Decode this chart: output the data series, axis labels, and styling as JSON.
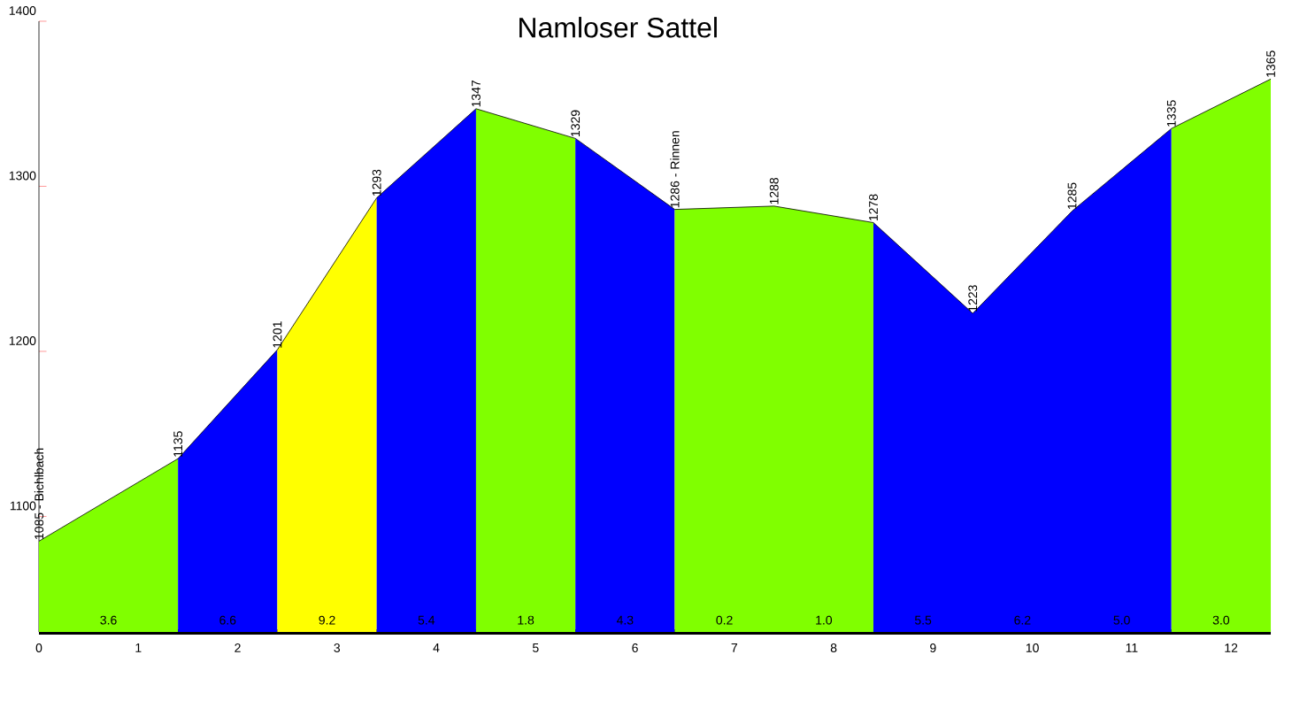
{
  "chart_data": {
    "type": "area",
    "title": "Namloser Sattel",
    "series": [
      {
        "type": "line",
        "color": "#000000",
        "x": [
          0,
          1.4,
          2.4,
          3.4,
          4.4,
          5.4,
          6.4,
          7.4,
          8.4,
          9.4,
          10.4,
          11.4,
          12.4
        ],
        "values": [
          1085,
          1135,
          1201,
          1293,
          1347,
          1329,
          1286,
          1288,
          1278,
          1223,
          1285,
          1335,
          1365
        ],
        "value_labels": [
          "1085 - Bichlbach",
          "1135",
          "1201",
          "1293",
          "1347",
          "1329",
          "1286 - Rinnen",
          "1288",
          "1278",
          "1223",
          "1285",
          "1335",
          "1365"
        ]
      },
      {
        "x": [
          0,
          1.4
        ],
        "values": [
          1085,
          1135
        ],
        "color": "#80ff00"
      },
      {
        "x": [
          1.4,
          2.4
        ],
        "values": [
          1135,
          1201
        ],
        "color": "#0000ff"
      },
      {
        "x": [
          2.4,
          3.4
        ],
        "values": [
          1201,
          1293
        ],
        "color": "#ffff00"
      },
      {
        "x": [
          3.4,
          4.4
        ],
        "values": [
          1293,
          1347
        ],
        "color": "#0000ff"
      },
      {
        "x": [
          4.4,
          5.4
        ],
        "values": [
          1347,
          1329
        ],
        "color": "#80ff00"
      },
      {
        "x": [
          5.4,
          6.4
        ],
        "values": [
          1329,
          1286
        ],
        "color": "#0000ff"
      },
      {
        "x": [
          6.4,
          7.4,
          8.4
        ],
        "values": [
          1286,
          1288,
          1278
        ],
        "color": "#80ff00"
      },
      {
        "x": [
          8.4,
          9.4,
          10.4,
          11.4
        ],
        "values": [
          1278,
          1223,
          1285,
          1335
        ],
        "color": "#0000ff"
      },
      {
        "x": [
          11.4,
          12.4
        ],
        "values": [
          1335,
          1365
        ],
        "color": "#80ff00"
      }
    ],
    "annotations": [
      "3.6",
      "6.6",
      "9.2",
      "5.4",
      "1.8",
      "4.3",
      "0.2",
      "1.0",
      "5.5",
      "6.2",
      "5.0",
      "3.0"
    ],
    "xlim": [
      0,
      12.4
    ],
    "ylim": [
      1030,
      1400
    ],
    "xticks": [
      0,
      1,
      2,
      3,
      4,
      5,
      6,
      7,
      8,
      9,
      10,
      11,
      12
    ],
    "yticks": [
      1100,
      1200,
      1300,
      1400
    ]
  }
}
